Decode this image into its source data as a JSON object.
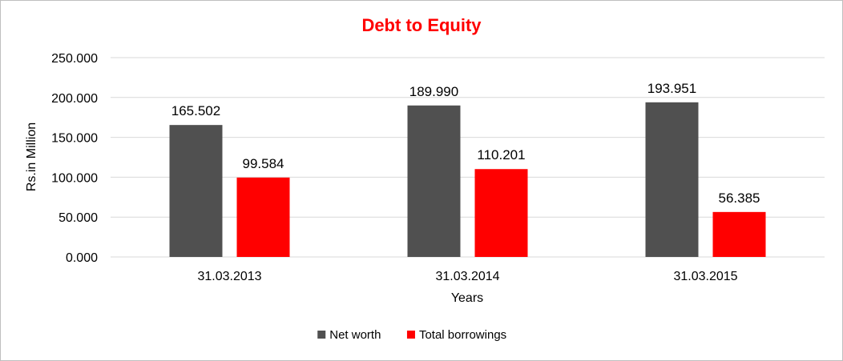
{
  "chart_data": {
    "type": "bar",
    "title": "Debt to Equity",
    "xlabel": "Years",
    "ylabel": "Rs.in Million",
    "categories": [
      "31.03.2013",
      "31.03.2014",
      "31.03.2015"
    ],
    "series": [
      {
        "name": "Net worth",
        "values": [
          165.502,
          189.99,
          193.951
        ],
        "color": "#505050"
      },
      {
        "name": "Total borrowings",
        "values": [
          99.584,
          110.201,
          56.385
        ],
        "color": "#ff0000"
      }
    ],
    "ylim": [
      0,
      250
    ],
    "y_ticks": [
      "0.000",
      "50.000",
      "100.000",
      "150.000",
      "200.000",
      "250.000"
    ],
    "data_labels": [
      [
        "165.502",
        "189.990",
        "193.951"
      ],
      [
        "99.584",
        "110.201",
        "56.385"
      ]
    ],
    "grid": true,
    "legend_position": "bottom"
  }
}
